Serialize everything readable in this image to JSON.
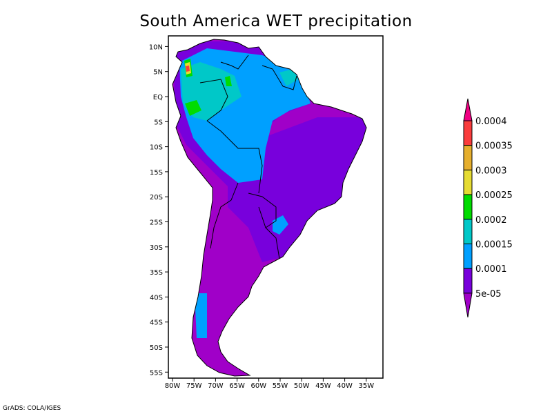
{
  "title": "South America WET precipitation",
  "credit": "GrADS: COLA/IGES",
  "map": {
    "lat_ticks": [
      "10N",
      "5N",
      "EQ",
      "5S",
      "10S",
      "15S",
      "20S",
      "25S",
      "30S",
      "35S",
      "40S",
      "45S",
      "50S",
      "55S"
    ],
    "lat_values": [
      10,
      5,
      0,
      -5,
      -10,
      -15,
      -20,
      -25,
      -30,
      -35,
      -40,
      -45,
      -50,
      -55
    ],
    "lon_ticks": [
      "80W",
      "75W",
      "70W",
      "65W",
      "60W",
      "55W",
      "50W",
      "45W",
      "40W",
      "35W"
    ],
    "lon_values": [
      -80,
      -75,
      -70,
      -65,
      -60,
      -55,
      -50,
      -45,
      -40,
      -35
    ]
  },
  "colorbar": {
    "labels": [
      "0.0004",
      "0.00035",
      "0.0003",
      "0.00025",
      "0.0002",
      "0.00015",
      "0.0001",
      "5e-05"
    ],
    "colors_top_to_bottom": [
      "#f00082",
      "#fa3c3c",
      "#e6af2d",
      "#e6dc32",
      "#00dc00",
      "#00c8c8",
      "#00a0ff",
      "#7800dc",
      "#a000c8"
    ]
  }
}
